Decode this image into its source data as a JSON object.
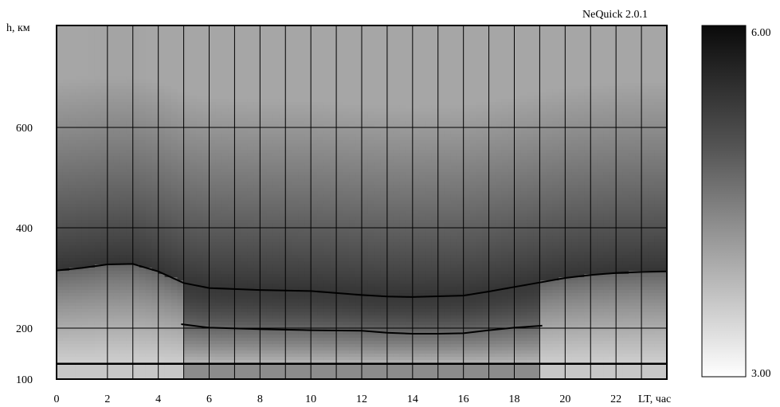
{
  "model_label": "NeQuick 2.0.1",
  "chart_data": {
    "type": "heatmap",
    "title": "",
    "xlabel": "LT, час",
    "ylabel": "h, км",
    "xlim": [
      0,
      24
    ],
    "ylim": [
      100,
      700
    ],
    "x_ticks": [
      "0",
      "2",
      "4",
      "6",
      "8",
      "10",
      "12",
      "14",
      "16",
      "18",
      "20",
      "22"
    ],
    "y_ticks": [
      "100",
      "200",
      "400",
      "600"
    ],
    "y_tick_values": [
      100,
      200,
      400,
      600
    ],
    "grid": true,
    "colorbar": {
      "min": 3.0,
      "max": 6.0,
      "min_label": "3.00",
      "max_label": "6.00",
      "colormap": "white-to-black"
    },
    "lines": [
      {
        "name": "",
        "x": [
          0,
          1,
          2,
          3,
          4,
          5,
          6,
          8,
          10,
          12,
          13,
          14,
          16,
          17,
          18,
          19,
          20,
          21,
          22,
          23,
          24
        ],
        "y": [
          315,
          320,
          327,
          328,
          313,
          290,
          280,
          276,
          274,
          266,
          263,
          262,
          265,
          273,
          282,
          291,
          300,
          306,
          310,
          312,
          313
        ]
      },
      {
        "name": "",
        "x": [
          4.9,
          6,
          8,
          10,
          12,
          13,
          14,
          15,
          16,
          17,
          18,
          19.1
        ],
        "y": [
          208,
          201,
          198,
          196,
          195,
          191,
          189,
          189,
          190,
          196,
          201,
          205
        ]
      }
    ],
    "hline": 130
  }
}
